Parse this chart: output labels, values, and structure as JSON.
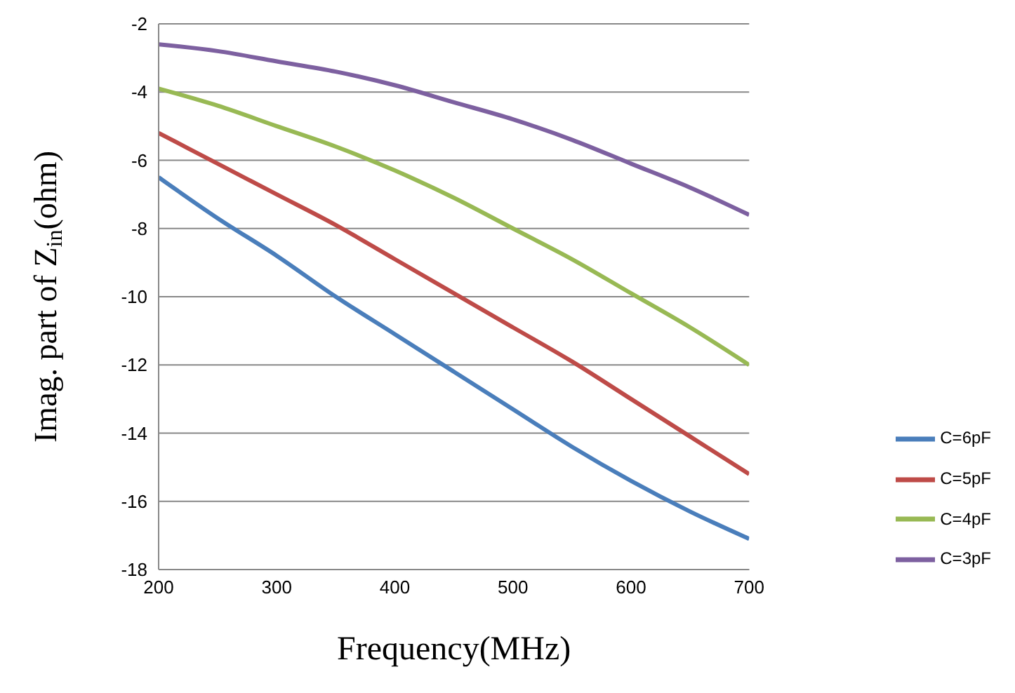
{
  "chart_data": {
    "type": "line",
    "xlabel": "Frequency(MHz)",
    "ylabel": "Imag. part of Z$_{in}$(ohm)",
    "x": [
      200,
      250,
      300,
      350,
      400,
      450,
      500,
      550,
      600,
      650,
      700
    ],
    "series": [
      {
        "name": "C=6pF",
        "color": "#4a7ebb",
        "values": [
          -6.5,
          -7.7,
          -8.8,
          -10.0,
          -11.1,
          -12.2,
          -13.3,
          -14.4,
          -15.4,
          -16.3,
          -17.1
        ]
      },
      {
        "name": "C=5pF",
        "color": "#be4b48",
        "values": [
          -5.2,
          -6.1,
          -7.0,
          -7.9,
          -8.9,
          -9.9,
          -10.9,
          -11.9,
          -13.0,
          -14.1,
          -15.2
        ]
      },
      {
        "name": "C=4pF",
        "color": "#98b954",
        "values": [
          -3.9,
          -4.4,
          -5.0,
          -5.6,
          -6.3,
          -7.1,
          -8.0,
          -8.9,
          -9.9,
          -10.9,
          -12.0
        ]
      },
      {
        "name": "C=3pF",
        "color": "#7d60a0",
        "values": [
          -2.6,
          -2.8,
          -3.1,
          -3.4,
          -3.8,
          -4.3,
          -4.8,
          -5.4,
          -6.1,
          -6.8,
          -7.6
        ]
      }
    ],
    "xlim": [
      200,
      700
    ],
    "xticks": [
      200,
      300,
      400,
      500,
      600,
      700
    ],
    "ylim": [
      -18,
      -2
    ],
    "yticks": [
      -18,
      -16,
      -14,
      -12,
      -10,
      -8,
      -6,
      -4,
      -2
    ],
    "grid": "y",
    "legend": "right",
    "marker": "none",
    "line_style": "solid"
  }
}
